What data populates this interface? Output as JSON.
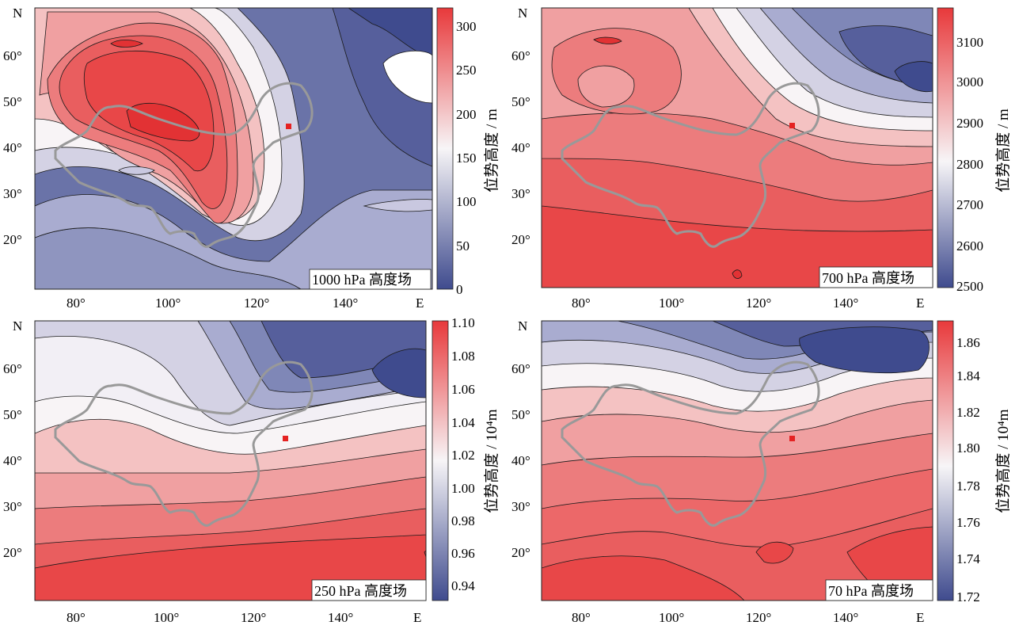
{
  "colors": {
    "high": "#e8393b",
    "mid": "#f7f5f7",
    "low": "#3f4b8e",
    "contour": "#1a1a1a",
    "border": "#999999",
    "marker": "#e52222"
  },
  "axes": {
    "north_label": "N",
    "east_label": "E",
    "lat_ticks": [
      "60°",
      "50°",
      "40°",
      "30°",
      "20°"
    ],
    "lon_ticks": [
      "80°",
      "100°",
      "120°",
      "140°"
    ]
  },
  "panels": [
    {
      "id": "p1000",
      "title": "1000 hPa 高度场",
      "colorbar_label": "位势高度 / m",
      "colorbar_ticks": [
        "300",
        "250",
        "200",
        "150",
        "100",
        "50",
        "0"
      ],
      "value_range": [
        0,
        320
      ]
    },
    {
      "id": "p700",
      "title": "700 hPa 高度场",
      "colorbar_label": "位势高度 / m",
      "colorbar_ticks": [
        "3100",
        "3000",
        "2900",
        "2800",
        "2700",
        "2600",
        "2500"
      ],
      "value_range": [
        2500,
        3180
      ]
    },
    {
      "id": "p250",
      "title": "250 hPa 高度场",
      "colorbar_label": "位势高度 / 10⁴m",
      "colorbar_ticks": [
        "1.10",
        "1.08",
        "1.06",
        "1.04",
        "1.02",
        "1.00",
        "0.98",
        "0.96",
        "0.94"
      ],
      "value_range": [
        0.93,
        1.1
      ]
    },
    {
      "id": "p70",
      "title": "70 hPa 高度场",
      "colorbar_label": "位势高度 / 10⁴m",
      "colorbar_ticks": [
        "1.86",
        "1.84",
        "1.82",
        "1.80",
        "1.78",
        "1.76",
        "1.74",
        "1.72"
      ],
      "value_range": [
        1.72,
        1.87
      ]
    }
  ]
}
